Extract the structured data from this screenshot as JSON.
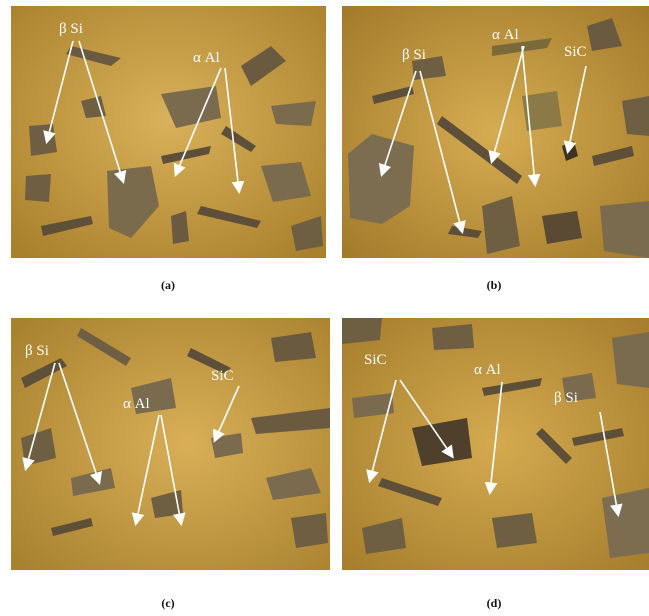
{
  "panels": [
    {
      "id": "a",
      "caption": "(a)",
      "labels": {
        "beta": "β Si",
        "alpha": "α Al"
      }
    },
    {
      "id": "b",
      "caption": "(b)",
      "labels": {
        "beta": "β Si",
        "alpha": "α Al",
        "sic": "SiC"
      }
    },
    {
      "id": "c",
      "caption": "(c)",
      "labels": {
        "beta": "β Si",
        "alpha": "α Al",
        "sic": "SiC"
      }
    },
    {
      "id": "d",
      "caption": "(d)",
      "labels": {
        "beta": "β Si",
        "alpha": "α Al",
        "sic": "SiC"
      }
    }
  ],
  "colors": {
    "matrix": "#c79a3c",
    "matrix_light": "#d4ab55",
    "particle": "#7a6a4e",
    "particle_dark": "#5e5038",
    "arrow": "#ffffff"
  }
}
